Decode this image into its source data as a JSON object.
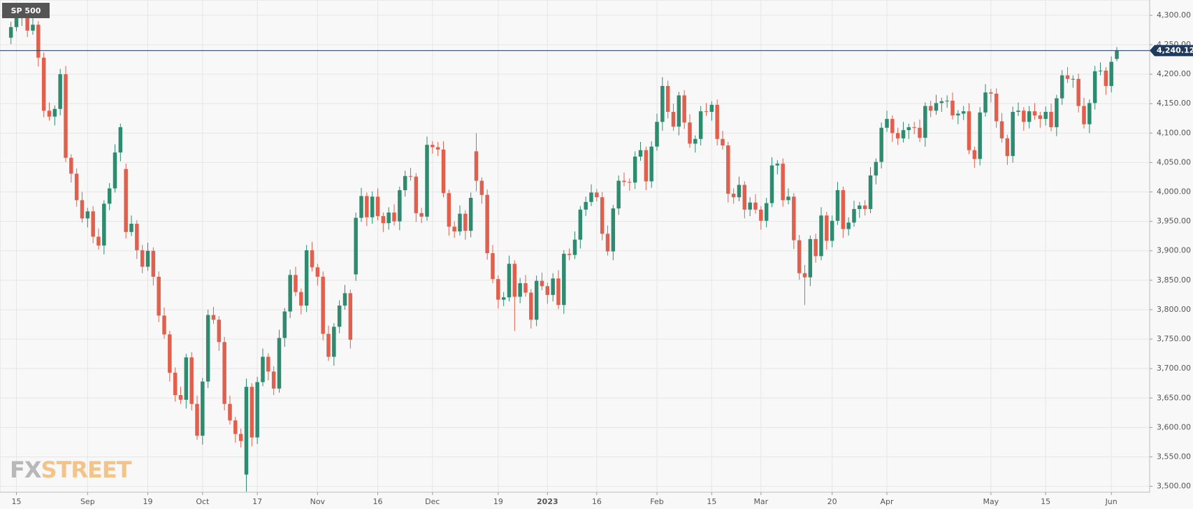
{
  "chart_data": {
    "type": "candlestick",
    "title": "SP 500",
    "watermark": {
      "left": "FX",
      "right": "STREET"
    },
    "up_color": "#2e8b6f",
    "down_color": "#e0604d",
    "grid": true,
    "xlim": [
      -2,
      208
    ],
    "xticks": [
      {
        "value": 1,
        "label": "15"
      },
      {
        "value": 14,
        "label": "Sep"
      },
      {
        "value": 25,
        "label": "19"
      },
      {
        "value": 35,
        "label": "Oct"
      },
      {
        "value": 45,
        "label": "17"
      },
      {
        "value": 56,
        "label": "Nov"
      },
      {
        "value": 67,
        "label": "16"
      },
      {
        "value": 77,
        "label": "Dec"
      },
      {
        "value": 89,
        "label": "19"
      },
      {
        "value": 98,
        "label": "2023"
      },
      {
        "value": 107,
        "label": "16"
      },
      {
        "value": 118,
        "label": "Feb"
      },
      {
        "value": 128,
        "label": "15"
      },
      {
        "value": 137,
        "label": "Mar"
      },
      {
        "value": 150,
        "label": "20"
      },
      {
        "value": 160,
        "label": "Apr"
      },
      {
        "value": 179,
        "label": "May"
      },
      {
        "value": 189,
        "label": "15"
      },
      {
        "value": 201,
        "label": "Jun"
      }
    ],
    "ylim": [
      3490,
      4326
    ],
    "yticks": [
      {
        "value": 3500,
        "label": "3,500.00"
      },
      {
        "value": 3550,
        "label": "3,550.00"
      },
      {
        "value": 3600,
        "label": "3,600.00"
      },
      {
        "value": 3650,
        "label": "3,650.00"
      },
      {
        "value": 3700,
        "label": "3,700.00"
      },
      {
        "value": 3750,
        "label": "3,750.00"
      },
      {
        "value": 3800,
        "label": "3,800.00"
      },
      {
        "value": 3850,
        "label": "3,850.00"
      },
      {
        "value": 3900,
        "label": "3,900.00"
      },
      {
        "value": 3950,
        "label": "3,950.00"
      },
      {
        "value": 4000,
        "label": "4,000.00"
      },
      {
        "value": 4050,
        "label": "4,050.00"
      },
      {
        "value": 4100,
        "label": "4,100.00"
      },
      {
        "value": 4150,
        "label": "4,150.00"
      },
      {
        "value": 4200,
        "label": "4,200.00"
      },
      {
        "value": 4250,
        "label": "4,250.00"
      },
      {
        "value": 4300,
        "label": "4,300.00"
      }
    ],
    "last_price": {
      "value": 4240.12,
      "label": "4,240.12"
    },
    "open": [
      4262,
      4280,
      4297,
      4305,
      4274,
      4284,
      4228,
      4138,
      4128,
      4141,
      4200,
      4058,
      4031,
      3986,
      3955,
      3967,
      3924,
      3909,
      3980,
      4006,
      4067,
      4039,
      3932,
      3946,
      3901,
      3873,
      3900,
      3856,
      3790,
      3758,
      3693,
      3655,
      3647,
      3719,
      3640,
      3586,
      3678,
      3791,
      3783,
      3745,
      3640,
      3612,
      3589,
      3520,
      3669,
      3583,
      3677,
      3720,
      3695,
      3666,
      3752,
      3797,
      3859,
      3830,
      3807,
      3901,
      3872,
      3856,
      3759,
      3720,
      3771,
      3807,
      3828,
      3860,
      3956,
      3993,
      3957,
      3992,
      3959,
      3947,
      3965,
      3950,
      4003,
      4027,
      4026,
      3964,
      3958,
      4080,
      4076,
      4072,
      3998,
      3941,
      3933,
      3963,
      3934,
      4069,
      4019,
      3995,
      3896,
      3852,
      3817,
      3821,
      3878,
      3822,
      3845,
      3829,
      3783,
      3849,
      3840,
      3825,
      3853,
      3808,
      3895,
      3893,
      3919,
      3970,
      3983,
      3999,
      3991,
      3929,
      3899,
      3972,
      4019,
      4017,
      4016,
      4060,
      4071,
      4018,
      4077,
      4119,
      4180,
      4136,
      4111,
      4164,
      4118,
      4082,
      4090,
      4137,
      4136,
      4148,
      4090,
      4079,
      3997,
      3991,
      4012,
      3970,
      3982,
      3970,
      3951,
      3981,
      4045,
      4048,
      3986,
      3992,
      3918,
      3862,
      3855,
      3920,
      3891,
      3960,
      3917,
      3951,
      4003,
      3937,
      3948,
      3971,
      3977,
      3971,
      4028,
      4051,
      4109,
      4124,
      4100,
      4091,
      4105,
      4110,
      4109,
      4092,
      4146,
      4138,
      4151,
      4154,
      4155,
      4130,
      4133,
      4137,
      4071,
      4056,
      4135,
      4169,
      4167,
      4120,
      4091,
      4061,
      4136,
      4138,
      4119,
      4137,
      4130,
      4124,
      4136,
      4110,
      4159,
      4198,
      4192,
      4192,
      4146,
      4115,
      4151,
      4205,
      4206,
      4180,
      4226
    ],
    "high": [
      4289,
      4311,
      4311,
      4314,
      4298,
      4290,
      4237,
      4152,
      4147,
      4209,
      4214,
      4064,
      4040,
      4000,
      3973,
      3976,
      3938,
      3986,
      4015,
      4081,
      4116,
      4048,
      3960,
      3952,
      3910,
      3914,
      3906,
      3865,
      3804,
      3764,
      3702,
      3669,
      3725,
      3728,
      3654,
      3684,
      3800,
      3805,
      3789,
      3754,
      3654,
      3618,
      3598,
      3683,
      3675,
      3686,
      3734,
      3726,
      3704,
      3766,
      3803,
      3868,
      3873,
      3836,
      3910,
      3915,
      3878,
      3865,
      3773,
      3777,
      3816,
      3842,
      3834,
      3965,
      4007,
      3999,
      4001,
      4006,
      3965,
      3974,
      3979,
      4009,
      4036,
      4041,
      4032,
      3973,
      4094,
      4086,
      4085,
      4086,
      4004,
      3950,
      3977,
      3969,
      3999,
      4100,
      4025,
      4004,
      3910,
      3858,
      3830,
      3892,
      3884,
      3854,
      3859,
      3835,
      3858,
      3863,
      3846,
      3862,
      3867,
      3901,
      3904,
      3933,
      3976,
      3992,
      4013,
      4005,
      4000,
      3943,
      3978,
      4028,
      4033,
      4023,
      4069,
      4085,
      4077,
      4086,
      4133,
      4195,
      4189,
      4150,
      4170,
      4173,
      4132,
      4096,
      4146,
      4151,
      4154,
      4157,
      4104,
      4085,
      4006,
      4026,
      4018,
      3991,
      3996,
      3976,
      3990,
      4059,
      4054,
      4057,
      4006,
      3998,
      3927,
      3876,
      3926,
      3929,
      3974,
      3966,
      3960,
      4017,
      4009,
      3957,
      3985,
      3983,
      3986,
      4042,
      4057,
      4118,
      4138,
      4130,
      4109,
      4119,
      4116,
      4119,
      4123,
      4152,
      4155,
      4165,
      4160,
      4164,
      4169,
      4139,
      4146,
      4151,
      4077,
      4144,
      4183,
      4175,
      4176,
      4134,
      4097,
      4145,
      4152,
      4144,
      4146,
      4151,
      4136,
      4145,
      4150,
      4165,
      4207,
      4212,
      4198,
      4201,
      4160,
      4157,
      4214,
      4220,
      4212,
      4230,
      4246
    ],
    "low": [
      4251,
      4273,
      4282,
      4263,
      4267,
      4213,
      4127,
      4121,
      4113,
      4130,
      4051,
      4016,
      3975,
      3948,
      3940,
      3913,
      3902,
      3894,
      3969,
      3999,
      4052,
      3921,
      3925,
      3886,
      3862,
      3866,
      3841,
      3779,
      3751,
      3678,
      3644,
      3640,
      3632,
      3629,
      3579,
      3571,
      3667,
      3776,
      3730,
      3629,
      3605,
      3574,
      3566,
      3491,
      3568,
      3572,
      3670,
      3680,
      3655,
      3659,
      3737,
      3786,
      3823,
      3792,
      3796,
      3865,
      3841,
      3748,
      3713,
      3705,
      3760,
      3800,
      3734,
      3849,
      3949,
      3942,
      3946,
      3952,
      3932,
      3936,
      3943,
      3935,
      3992,
      4019,
      3949,
      3947,
      3951,
      4065,
      4061,
      3991,
      3926,
      3922,
      3926,
      3919,
      3923,
      4001,
      3980,
      3885,
      3845,
      3802,
      3806,
      3814,
      3764,
      3811,
      3822,
      3768,
      3772,
      3833,
      3810,
      3814,
      3801,
      3793,
      3884,
      3886,
      3904,
      3959,
      3976,
      3984,
      3918,
      3892,
      3884,
      3961,
      4010,
      4002,
      4005,
      4053,
      4003,
      4007,
      4070,
      4104,
      4125,
      4104,
      4096,
      4107,
      4075,
      4067,
      4079,
      4129,
      4121,
      4079,
      4072,
      3982,
      3980,
      3984,
      3955,
      3959,
      3963,
      3936,
      3940,
      3974,
      4030,
      3975,
      3979,
      3903,
      3851,
      3808,
      3840,
      3880,
      3884,
      3902,
      3906,
      3944,
      3922,
      3926,
      3941,
      3956,
      3960,
      3964,
      4013,
      4040,
      4102,
      4085,
      4080,
      4084,
      4090,
      4098,
      4085,
      4077,
      4127,
      4131,
      4136,
      4143,
      4123,
      4115,
      4122,
      4064,
      4041,
      4045,
      4128,
      4152,
      4109,
      4084,
      4046,
      4050,
      4129,
      4104,
      4108,
      4123,
      4109,
      4113,
      4103,
      4095,
      4148,
      4185,
      4177,
      4135,
      4108,
      4100,
      4140,
      4198,
      4165,
      4169,
      4222
    ],
    "close": [
      4280,
      4297,
      4305,
      4274,
      4284,
      4228,
      4138,
      4128,
      4141,
      4200,
      4058,
      4031,
      3986,
      3955,
      3967,
      3924,
      3909,
      3980,
      4006,
      4067,
      4110,
      3932,
      3946,
      3901,
      3873,
      3900,
      3856,
      3790,
      3758,
      3693,
      3655,
      3647,
      3719,
      3640,
      3586,
      3678,
      3791,
      3783,
      3745,
      3640,
      3612,
      3589,
      3577,
      3669,
      3583,
      3677,
      3720,
      3695,
      3666,
      3752,
      3797,
      3859,
      3830,
      3807,
      3901,
      3872,
      3856,
      3759,
      3720,
      3771,
      3807,
      3828,
      3749,
      3956,
      3993,
      3957,
      3992,
      3959,
      3947,
      3965,
      3950,
      4003,
      4027,
      4026,
      3964,
      3958,
      4080,
      4076,
      4072,
      3998,
      3941,
      3933,
      3963,
      3934,
      3990,
      4019,
      3995,
      3896,
      3852,
      3817,
      3821,
      3878,
      3822,
      3845,
      3829,
      3783,
      3849,
      3840,
      3825,
      3853,
      3808,
      3895,
      3893,
      3919,
      3970,
      3983,
      3999,
      3991,
      3929,
      3899,
      3972,
      4019,
      4017,
      4016,
      4060,
      4071,
      4018,
      4077,
      4119,
      4180,
      4136,
      4111,
      4164,
      4118,
      4082,
      4090,
      4137,
      4136,
      4148,
      4090,
      4079,
      3997,
      3991,
      4012,
      3970,
      3982,
      3970,
      3951,
      3981,
      4045,
      4048,
      3986,
      3992,
      3918,
      3862,
      3855,
      3920,
      3891,
      3960,
      3917,
      3951,
      4003,
      3937,
      3948,
      3971,
      3977,
      3971,
      4028,
      4051,
      4109,
      4124,
      4100,
      4091,
      4105,
      4110,
      4109,
      4092,
      4146,
      4138,
      4151,
      4154,
      4155,
      4130,
      4133,
      4137,
      4071,
      4056,
      4135,
      4169,
      4167,
      4120,
      4091,
      4061,
      4136,
      4138,
      4119,
      4137,
      4130,
      4124,
      4136,
      4110,
      4159,
      4198,
      4192,
      4192,
      4146,
      4115,
      4151,
      4205,
      4206,
      4180,
      4221,
      4240.12
    ]
  }
}
